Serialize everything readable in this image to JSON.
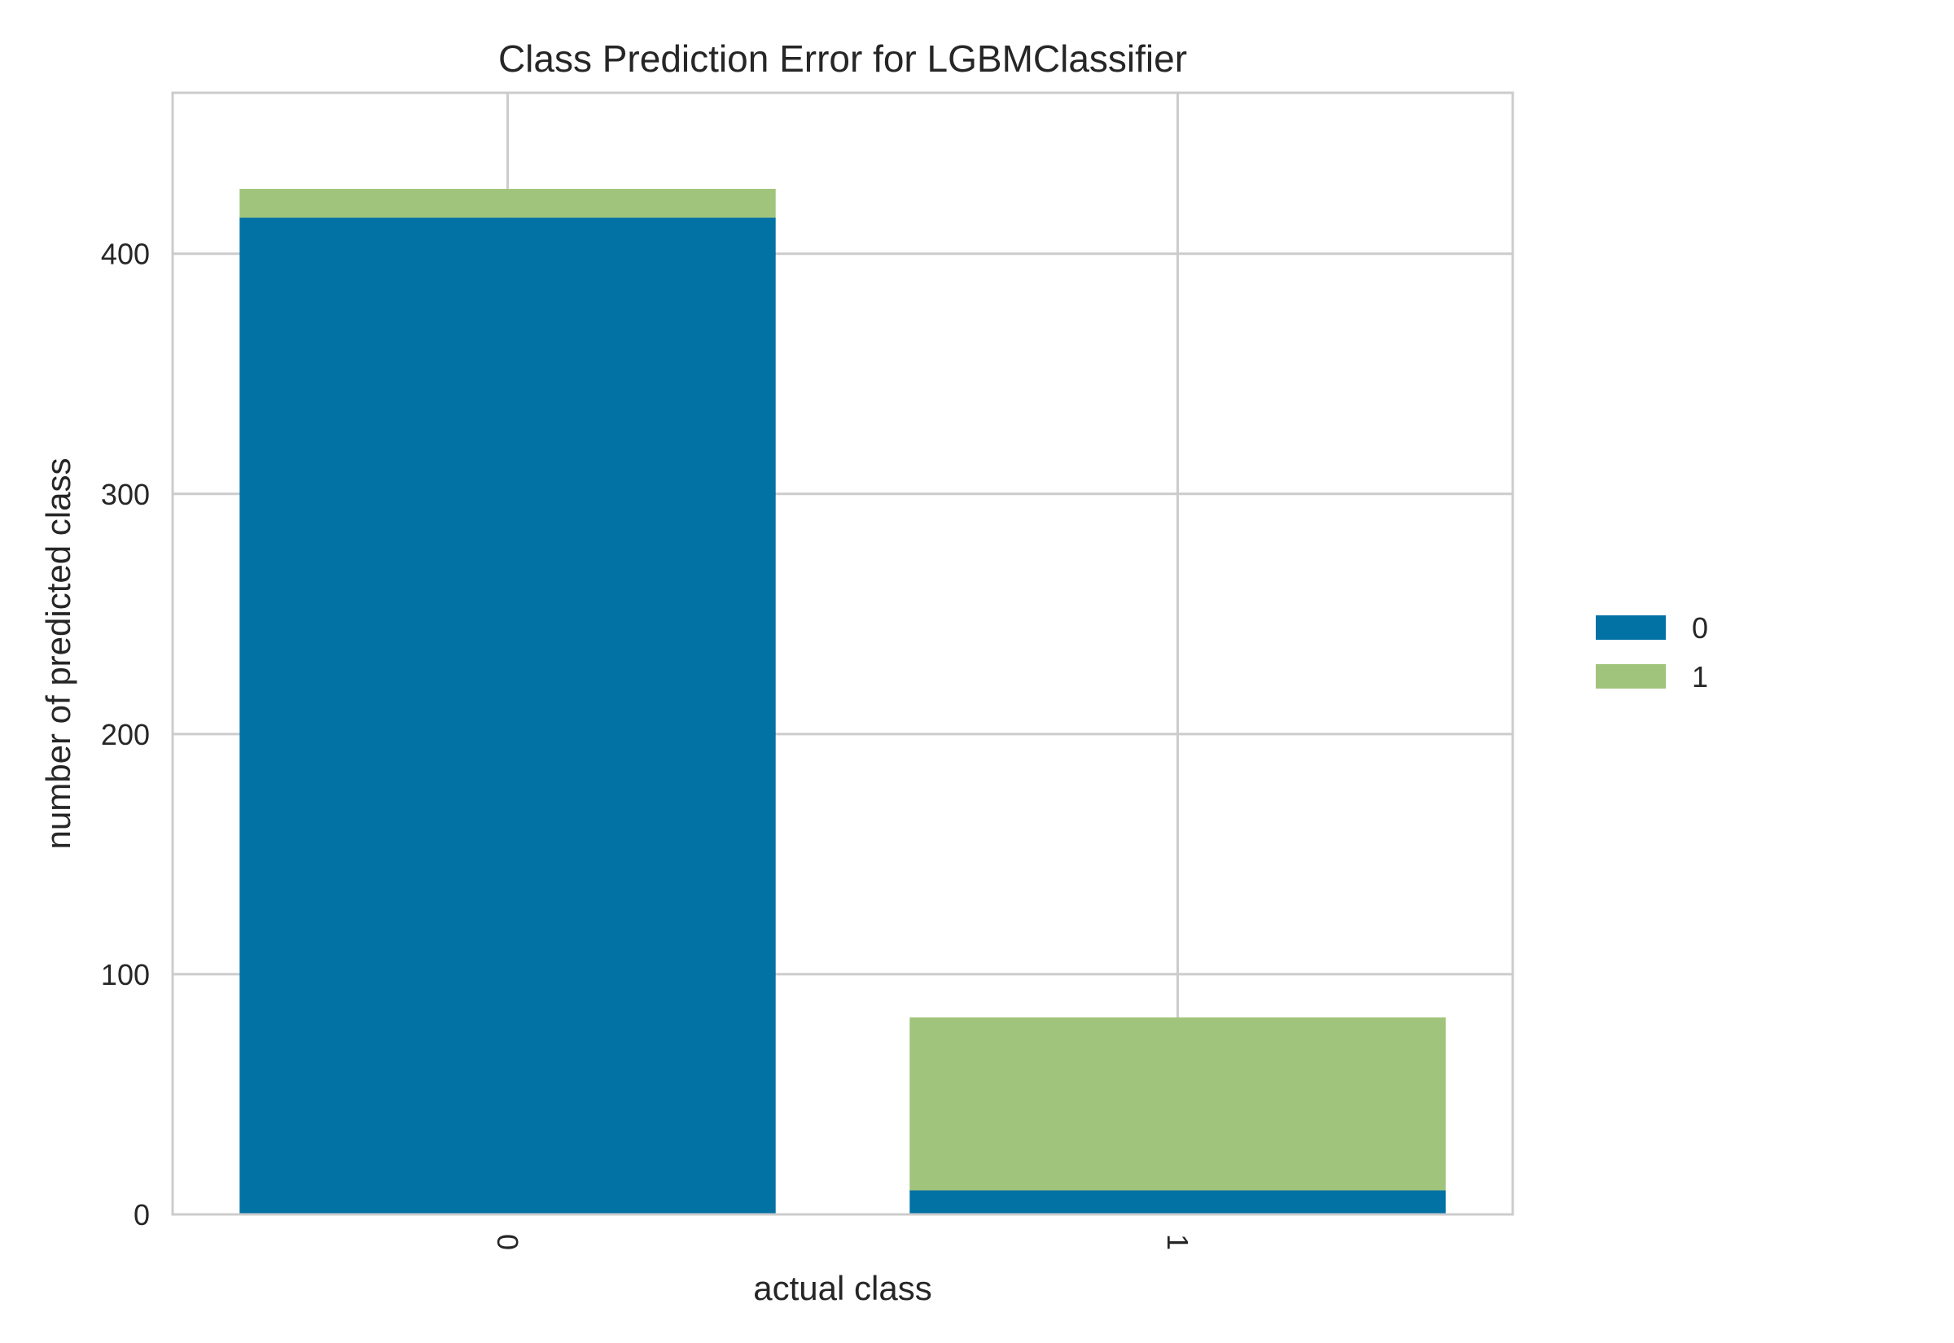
{
  "chart_data": {
    "type": "bar",
    "stacked": true,
    "title": "Class Prediction Error for LGBMClassifier",
    "xlabel": "actual class",
    "ylabel": "number of predicted class",
    "categories": [
      "0",
      "1"
    ],
    "series": [
      {
        "name": "0",
        "color": "#0271a4",
        "values": [
          415,
          10
        ]
      },
      {
        "name": "1",
        "color": "#a0c47b",
        "values": [
          12,
          72
        ]
      }
    ],
    "ylim": [
      0,
      467
    ],
    "yticks": [
      0,
      100,
      200,
      300,
      400
    ],
    "grid": true,
    "legend_position": "right"
  }
}
